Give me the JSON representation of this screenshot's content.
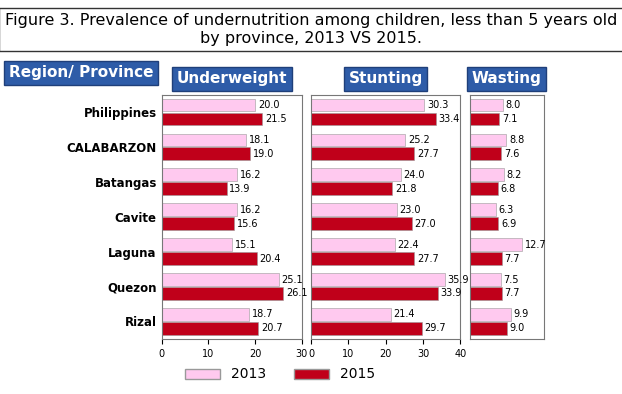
{
  "title": "Figure 3. Prevalence of undernutrition among children, less than 5 years old by province, 2013 VS 2015.",
  "header": "Region/ Province",
  "legend": "lower center",
  "chart_data": [
    {
      "type": "bar",
      "orientation": "horizontal",
      "title": "Underweight",
      "categories": [
        "Philippines",
        "CALABARZON",
        "Batangas",
        "Cavite",
        "Laguna",
        "Quezon",
        "Rizal"
      ],
      "series": [
        {
          "name": "2013",
          "color": "#ffc9ef",
          "values": [
            20.0,
            18.1,
            16.2,
            16.2,
            15.1,
            25.1,
            18.7
          ],
          "value_labels": [
            "20.0",
            "18.1",
            "16.2",
            "16.2",
            "15.1",
            "25.1",
            "18.7"
          ]
        },
        {
          "name": "2015",
          "color": "#c0001a",
          "values": [
            21.5,
            19.0,
            13.9,
            15.6,
            20.4,
            26.1,
            20.7
          ],
          "value_labels": [
            "21.5",
            "19.0",
            "13.9",
            "15.6",
            "20.4",
            "26.1",
            "20.7"
          ]
        }
      ],
      "xlim": [
        0,
        30
      ],
      "xticks": [
        0,
        10,
        20,
        30
      ],
      "grid": false,
      "data_labels": true
    },
    {
      "type": "bar",
      "orientation": "horizontal",
      "title": "Stunting",
      "categories": [
        "Philippines",
        "CALABARZON",
        "Batangas",
        "Cavite",
        "Laguna",
        "Quezon",
        "Rizal"
      ],
      "series": [
        {
          "name": "2013",
          "color": "#ffc9ef",
          "values": [
            30.3,
            25.2,
            24.0,
            23.0,
            22.4,
            35.9,
            21.4
          ],
          "value_labels": [
            "30.3",
            "25.2",
            "24.0",
            "23.0",
            "22.4",
            "35.9",
            "21.4"
          ]
        },
        {
          "name": "2015",
          "color": "#c0001a",
          "values": [
            33.4,
            27.7,
            21.8,
            27.0,
            27.7,
            33.9,
            29.7
          ],
          "value_labels": [
            "33.4",
            "27.7",
            "21.8",
            "27.0",
            "27.7",
            "33.9",
            "29.7"
          ]
        }
      ],
      "xlim": [
        0,
        40
      ],
      "xticks": [
        0,
        10,
        20,
        30,
        40
      ],
      "grid": false,
      "data_labels": true,
      "tick_labels": "x"
    },
    {
      "type": "bar",
      "orientation": "horizontal",
      "title": "Wasting",
      "categories": [
        "Philippines",
        "CALABARZON",
        "Batangas",
        "Cavite",
        "Laguna",
        "Quezon",
        "Rizal"
      ],
      "series": [
        {
          "name": "2013",
          "color": "#ffc9ef",
          "values": [
            8.0,
            8.8,
            8.2,
            6.3,
            12.7,
            7.5,
            9.9
          ],
          "value_labels": [
            "8.0",
            "8.8",
            "8.2",
            "6.3",
            "12.7",
            "7.5",
            "9.9"
          ]
        },
        {
          "name": "2015",
          "color": "#c0001a",
          "values": [
            7.1,
            7.6,
            6.8,
            6.9,
            7.7,
            7.7,
            9.0
          ],
          "value_labels": [
            "7.1",
            "7.6",
            "6.8",
            "6.9",
            "7.7",
            "7.7",
            "9.0"
          ]
        }
      ],
      "xlim": [
        0,
        18
      ],
      "grid": false,
      "data_labels": true,
      "tick_labels": false
    }
  ]
}
